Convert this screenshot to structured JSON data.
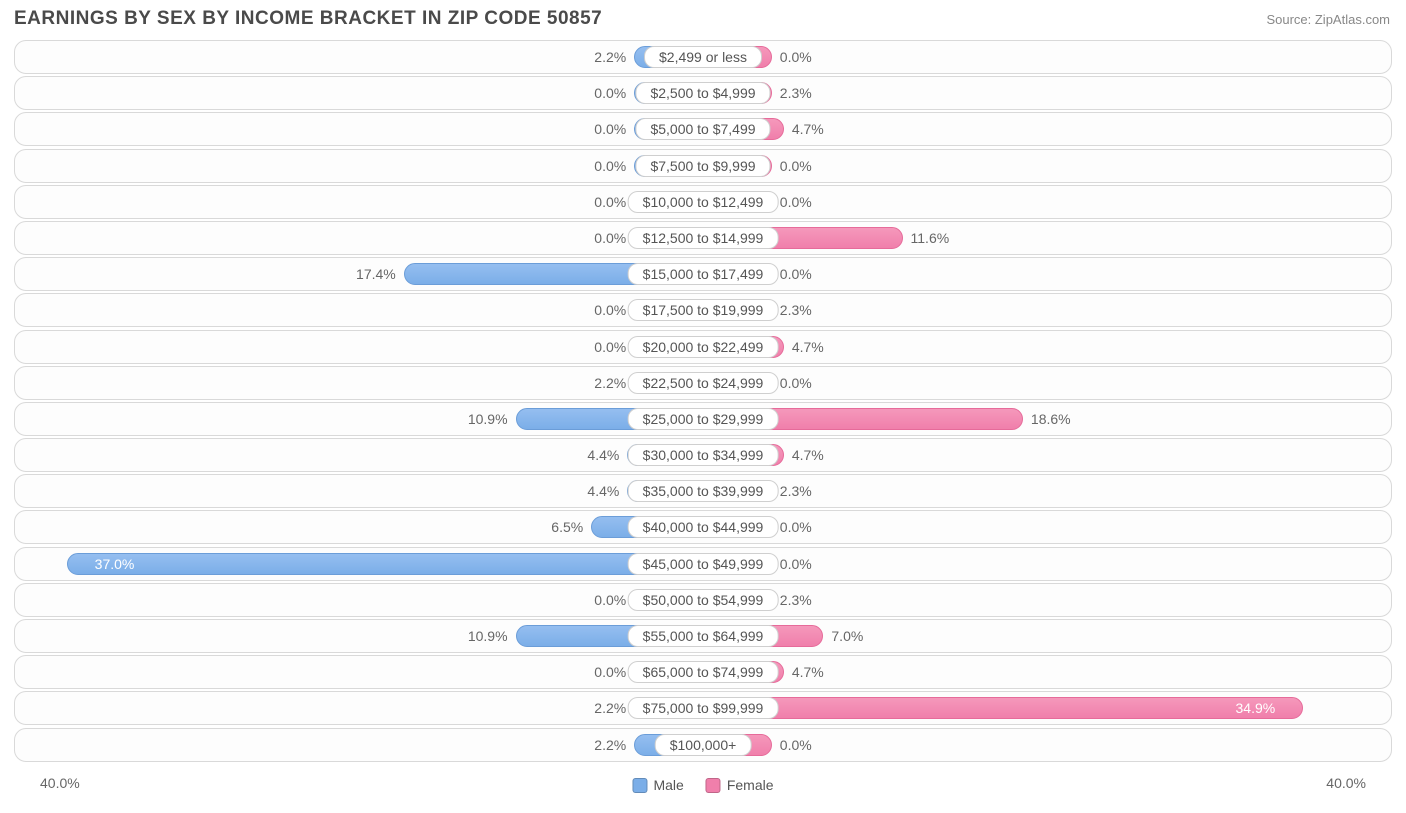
{
  "title": "EARNINGS BY SEX BY INCOME BRACKET IN ZIP CODE 50857",
  "source": "Source: ZipAtlas.com",
  "chart": {
    "type": "diverging-bar",
    "max_pct": 40.0,
    "min_bar_pct": 4.0,
    "axis_label": "40.0%",
    "colors": {
      "male_fill": "#7baee8",
      "female_fill": "#f07fab",
      "row_bg": "#fdfdfd",
      "row_border": "#d9d9d9",
      "text": "#555"
    },
    "legend": {
      "male": "Male",
      "female": "Female"
    },
    "rows": [
      {
        "bracket": "$2,499 or less",
        "male": 2.2,
        "female": 0.0
      },
      {
        "bracket": "$2,500 to $4,999",
        "male": 0.0,
        "female": 2.3
      },
      {
        "bracket": "$5,000 to $7,499",
        "male": 0.0,
        "female": 4.7
      },
      {
        "bracket": "$7,500 to $9,999",
        "male": 0.0,
        "female": 0.0
      },
      {
        "bracket": "$10,000 to $12,499",
        "male": 0.0,
        "female": 0.0
      },
      {
        "bracket": "$12,500 to $14,999",
        "male": 0.0,
        "female": 11.6
      },
      {
        "bracket": "$15,000 to $17,499",
        "male": 17.4,
        "female": 0.0
      },
      {
        "bracket": "$17,500 to $19,999",
        "male": 0.0,
        "female": 2.3
      },
      {
        "bracket": "$20,000 to $22,499",
        "male": 0.0,
        "female": 4.7
      },
      {
        "bracket": "$22,500 to $24,999",
        "male": 2.2,
        "female": 0.0
      },
      {
        "bracket": "$25,000 to $29,999",
        "male": 10.9,
        "female": 18.6
      },
      {
        "bracket": "$30,000 to $34,999",
        "male": 4.4,
        "female": 4.7
      },
      {
        "bracket": "$35,000 to $39,999",
        "male": 4.4,
        "female": 2.3
      },
      {
        "bracket": "$40,000 to $44,999",
        "male": 6.5,
        "female": 0.0
      },
      {
        "bracket": "$45,000 to $49,999",
        "male": 37.0,
        "female": 0.0
      },
      {
        "bracket": "$50,000 to $54,999",
        "male": 0.0,
        "female": 2.3
      },
      {
        "bracket": "$55,000 to $64,999",
        "male": 10.9,
        "female": 7.0
      },
      {
        "bracket": "$65,000 to $74,999",
        "male": 0.0,
        "female": 4.7
      },
      {
        "bracket": "$75,000 to $99,999",
        "male": 2.2,
        "female": 34.9
      },
      {
        "bracket": "$100,000+",
        "male": 2.2,
        "female": 0.0
      }
    ]
  }
}
